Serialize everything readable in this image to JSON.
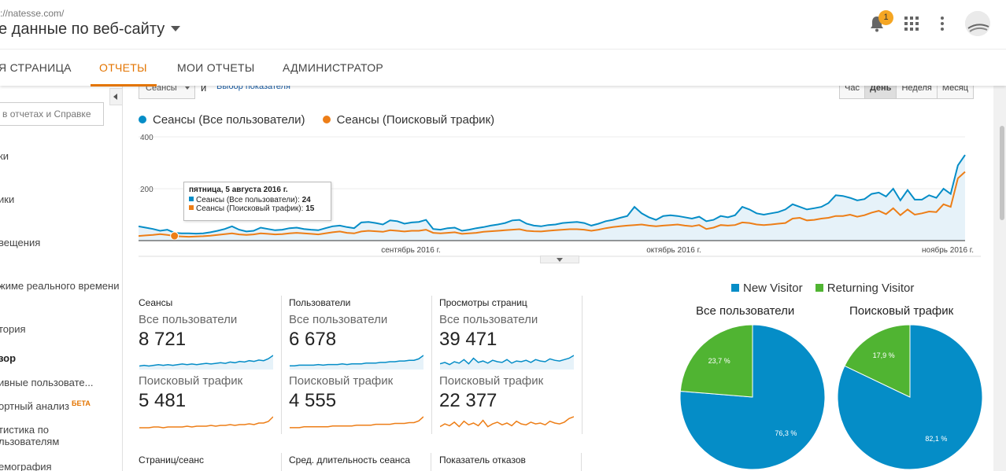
{
  "header": {
    "url": "://natesse.com/",
    "title": "е данные по веб-сайту",
    "notification_count": "1"
  },
  "nav": {
    "tabs": [
      {
        "label": "Я СТРАНИЦА"
      },
      {
        "label": "ОТЧЕТЫ"
      },
      {
        "label": "МОИ ОТЧЕТЫ"
      },
      {
        "label": "АДМИНИСТРАТОР"
      }
    ]
  },
  "sidebar": {
    "search_placeholder": "в отчетах и Справке",
    "items": [
      {
        "label": "ки"
      },
      {
        "label": "ики"
      },
      {
        "label": "вещения"
      },
      {
        "label": "жиме реального времени"
      },
      {
        "label": "тория"
      },
      {
        "label": "зор"
      },
      {
        "label": "ивные пользовате..."
      },
      {
        "label": "ортный анализ",
        "badge": "БЕТА"
      },
      {
        "label": "тистика по"
      },
      {
        "label": "льзователям"
      },
      {
        "label": "емография"
      }
    ]
  },
  "toolbar": {
    "metric": "Сеансы",
    "and": "и",
    "choose_metric": "Выбор показателя",
    "periods": [
      "Час",
      "День",
      "Неделя",
      "Месяц"
    ]
  },
  "colors": {
    "series_all": "#058dc7",
    "series_search": "#ed7e17",
    "new_visitor": "#058dc7",
    "returning_visitor": "#50b432",
    "accent": "#e37400"
  },
  "chart_data": [
    {
      "type": "area",
      "ylim": [
        0,
        400
      ],
      "y_ticks": [
        "400",
        "200"
      ],
      "x_ticks": [
        "сентябрь 2016 г.",
        "октябрь 2016 г.",
        "ноябрь 2016 г."
      ],
      "series": [
        {
          "name": "Сеансы (Все пользователи)",
          "values": [
            55,
            50,
            45,
            38,
            42,
            30,
            28,
            28,
            27,
            28,
            32,
            38,
            45,
            55,
            42,
            35,
            38,
            50,
            45,
            40,
            42,
            48,
            50,
            45,
            42,
            40,
            48,
            55,
            58,
            52,
            48,
            70,
            72,
            68,
            62,
            78,
            75,
            65,
            70,
            72,
            80,
            45,
            42,
            48,
            50,
            38,
            42,
            48,
            52,
            58,
            62,
            68,
            78,
            80,
            65,
            58,
            55,
            60,
            62,
            68,
            70,
            72,
            68,
            58,
            65,
            75,
            80,
            88,
            95,
            130,
            105,
            90,
            80,
            95,
            98,
            95,
            90,
            85,
            92,
            75,
            80,
            95,
            90,
            98,
            130,
            120,
            105,
            100,
            105,
            110,
            120,
            140,
            130,
            120,
            125,
            130,
            145,
            175,
            172,
            165,
            155,
            160,
            180,
            185,
            170,
            200,
            155,
            195,
            158,
            158,
            175,
            165,
            200,
            180,
            290,
            330
          ]
        },
        {
          "name": "Сеансы (Поисковый трафик)",
          "values": [
            18,
            20,
            22,
            25,
            22,
            18,
            16,
            15,
            16,
            17,
            19,
            22,
            25,
            28,
            24,
            22,
            24,
            28,
            26,
            24,
            25,
            28,
            30,
            28,
            26,
            24,
            28,
            32,
            35,
            30,
            28,
            35,
            38,
            36,
            34,
            40,
            38,
            35,
            38,
            38,
            42,
            30,
            28,
            30,
            32,
            26,
            28,
            30,
            34,
            36,
            38,
            40,
            42,
            44,
            38,
            36,
            35,
            38,
            40,
            42,
            44,
            44,
            42,
            38,
            42,
            48,
            52,
            55,
            58,
            60,
            62,
            58,
            55,
            58,
            60,
            62,
            58,
            55,
            60,
            45,
            50,
            60,
            58,
            60,
            70,
            68,
            62,
            60,
            62,
            65,
            68,
            85,
            88,
            78,
            80,
            85,
            88,
            95,
            95,
            100,
            92,
            98,
            108,
            115,
            102,
            125,
            98,
            120,
            100,
            105,
            112,
            110,
            140,
            130,
            240,
            265
          ]
        }
      ],
      "tooltip": {
        "title": "пятница, 5 августа 2016 г.",
        "rows": [
          {
            "label": "Сеансы (Все пользователи): ",
            "value": "24"
          },
          {
            "label": "Сеансы (Поисковый трафик): ",
            "value": "15"
          }
        ]
      }
    },
    {
      "type": "pie",
      "title": "Все пользователи",
      "slices": [
        {
          "name": "New Visitor",
          "value": 76.3,
          "label": "76,3 %"
        },
        {
          "name": "Returning Visitor",
          "value": 23.7,
          "label": "23,7 %"
        }
      ]
    },
    {
      "type": "pie",
      "title": "Поисковый трафик",
      "slices": [
        {
          "name": "New Visitor",
          "value": 82.1,
          "label": "82,1 %"
        },
        {
          "name": "Returning Visitor",
          "value": 17.9,
          "label": "17,9 %"
        }
      ]
    }
  ],
  "pie_legend": [
    "New Visitor",
    "Returning Visitor"
  ],
  "cards": [
    {
      "title": "Сеансы",
      "seg_all": "Все пользователи",
      "value_all": "8 721",
      "seg_search": "Поисковый трафик",
      "value_search": "5 481",
      "spark_all": [
        3,
        4,
        3,
        4,
        5,
        4,
        5,
        4,
        5,
        6,
        5,
        6,
        5,
        6,
        7,
        6,
        7,
        8,
        7,
        9,
        8,
        10,
        9,
        11,
        10,
        12,
        11,
        14,
        19
      ],
      "spark_search": [
        2,
        2,
        2,
        3,
        3,
        2,
        3,
        3,
        3,
        3,
        4,
        3,
        4,
        4,
        4,
        5,
        4,
        5,
        5,
        6,
        5,
        6,
        6,
        7,
        6,
        8,
        8,
        10,
        16
      ]
    },
    {
      "title": "Пользователи",
      "seg_all": "Все пользователи",
      "value_all": "6 678",
      "seg_search": "Поисковый трафик",
      "value_search": "4 555",
      "spark_all": [
        3,
        3,
        4,
        4,
        4,
        4,
        5,
        4,
        5,
        5,
        5,
        6,
        5,
        6,
        6,
        6,
        7,
        7,
        7,
        8,
        8,
        9,
        9,
        10,
        10,
        11,
        11,
        13,
        18
      ],
      "spark_search": [
        2,
        2,
        2,
        3,
        3,
        3,
        3,
        3,
        3,
        4,
        4,
        4,
        4,
        4,
        5,
        5,
        5,
        5,
        6,
        6,
        6,
        6,
        7,
        7,
        7,
        8,
        8,
        10,
        15
      ]
    },
    {
      "title": "Просмотры страниц",
      "seg_all": "Все пользователи",
      "value_all": "39 471",
      "seg_search": "Поисковый трафик",
      "value_search": "22 377",
      "spark_all": [
        6,
        8,
        5,
        9,
        7,
        12,
        6,
        14,
        8,
        10,
        7,
        11,
        9,
        8,
        12,
        7,
        10,
        9,
        11,
        8,
        12,
        10,
        9,
        13,
        11,
        10,
        12,
        14,
        18
      ],
      "spark_search": [
        3,
        6,
        4,
        8,
        3,
        9,
        5,
        7,
        4,
        10,
        3,
        6,
        8,
        5,
        7,
        4,
        9,
        6,
        5,
        8,
        6,
        7,
        5,
        9,
        7,
        6,
        8,
        12,
        14
      ]
    }
  ],
  "cards_row2": [
    "Страниц/сеанс",
    "Сред. длительность сеанса",
    "Показатель отказов"
  ]
}
